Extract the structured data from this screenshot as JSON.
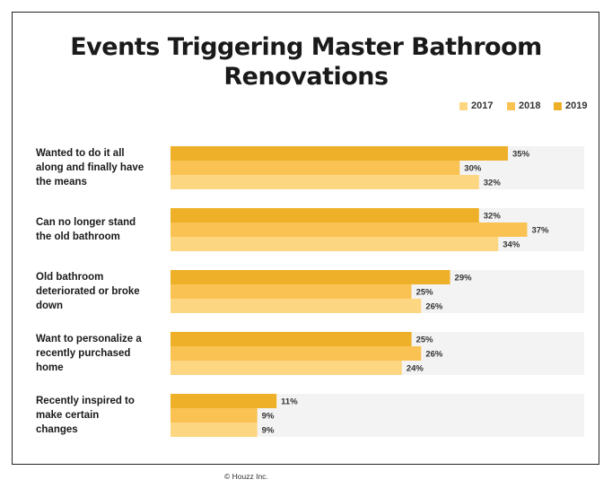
{
  "title_lines": [
    "Events Triggering Master Bathroom",
    "Renovations"
  ],
  "footer": "© Houzz Inc.",
  "colors": {
    "2017": "#fdd682",
    "2018": "#f9c253",
    "2019": "#eeb028",
    "band": "#f3f3f3",
    "label": "#333333"
  },
  "chart_data": {
    "type": "bar",
    "orientation": "horizontal",
    "title": "Events Triggering Master Bathroom Renovations",
    "categories": [
      "Wanted to do it all along and finally have the means",
      "Can no longer stand the old bathroom",
      "Old bathroom deteriorated or broke down",
      "Want to personalize a recently purchased home",
      "Recently inspired to make certain changes"
    ],
    "category_label_lines": [
      [
        "Wanted to do it all",
        "along and finally have",
        "the means"
      ],
      [
        "Can no longer stand",
        "the old bathroom"
      ],
      [
        "Old bathroom",
        "deteriorated or broke",
        "down"
      ],
      [
        "Want to personalize a",
        "recently purchased",
        "home"
      ],
      [
        "Recently inspired to",
        "make certain",
        "changes"
      ]
    ],
    "series": [
      {
        "name": "2019",
        "values": [
          35,
          32,
          29,
          25,
          11
        ]
      },
      {
        "name": "2018",
        "values": [
          30,
          37,
          25,
          26,
          9
        ]
      },
      {
        "name": "2017",
        "values": [
          32,
          34,
          26,
          24,
          9
        ]
      }
    ],
    "legend_order": [
      "2017",
      "2018",
      "2019"
    ],
    "legend_position": "top-right",
    "value_suffix": "%",
    "xlim": [
      0,
      50
    ],
    "grid": false
  }
}
